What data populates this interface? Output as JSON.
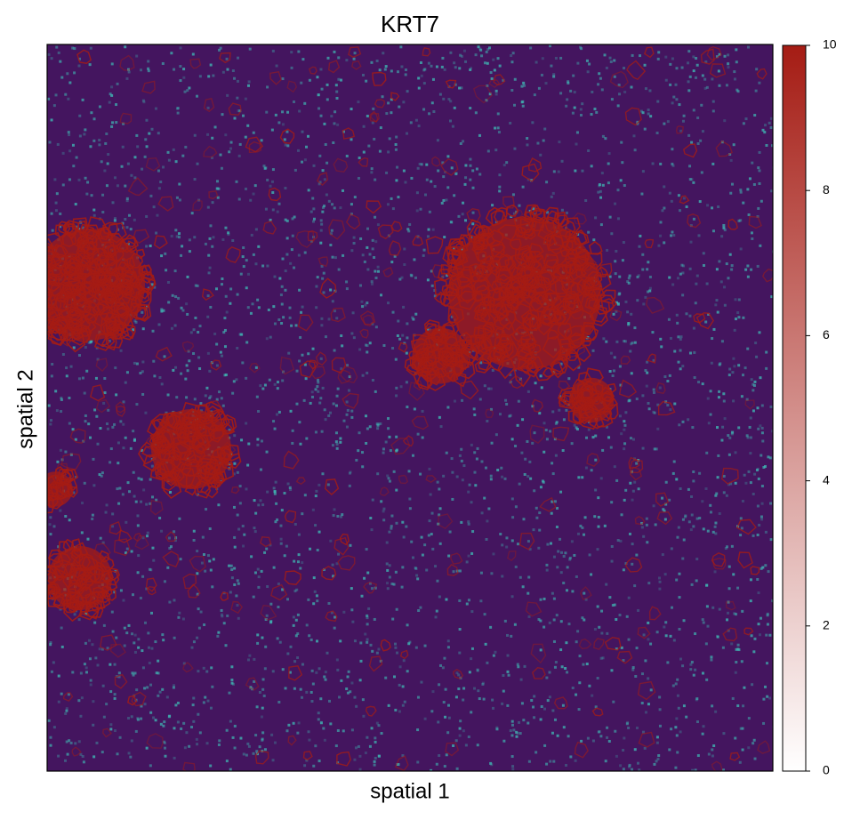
{
  "chart_data": {
    "type": "spatial",
    "title": "KRT7",
    "xlabel": "spatial 1",
    "ylabel": "spatial 2",
    "clim": [
      0,
      10
    ],
    "cticks": [
      0,
      2,
      4,
      6,
      8,
      10
    ],
    "cmap_colors": [
      "#ffffff",
      "#a51c14"
    ]
  }
}
